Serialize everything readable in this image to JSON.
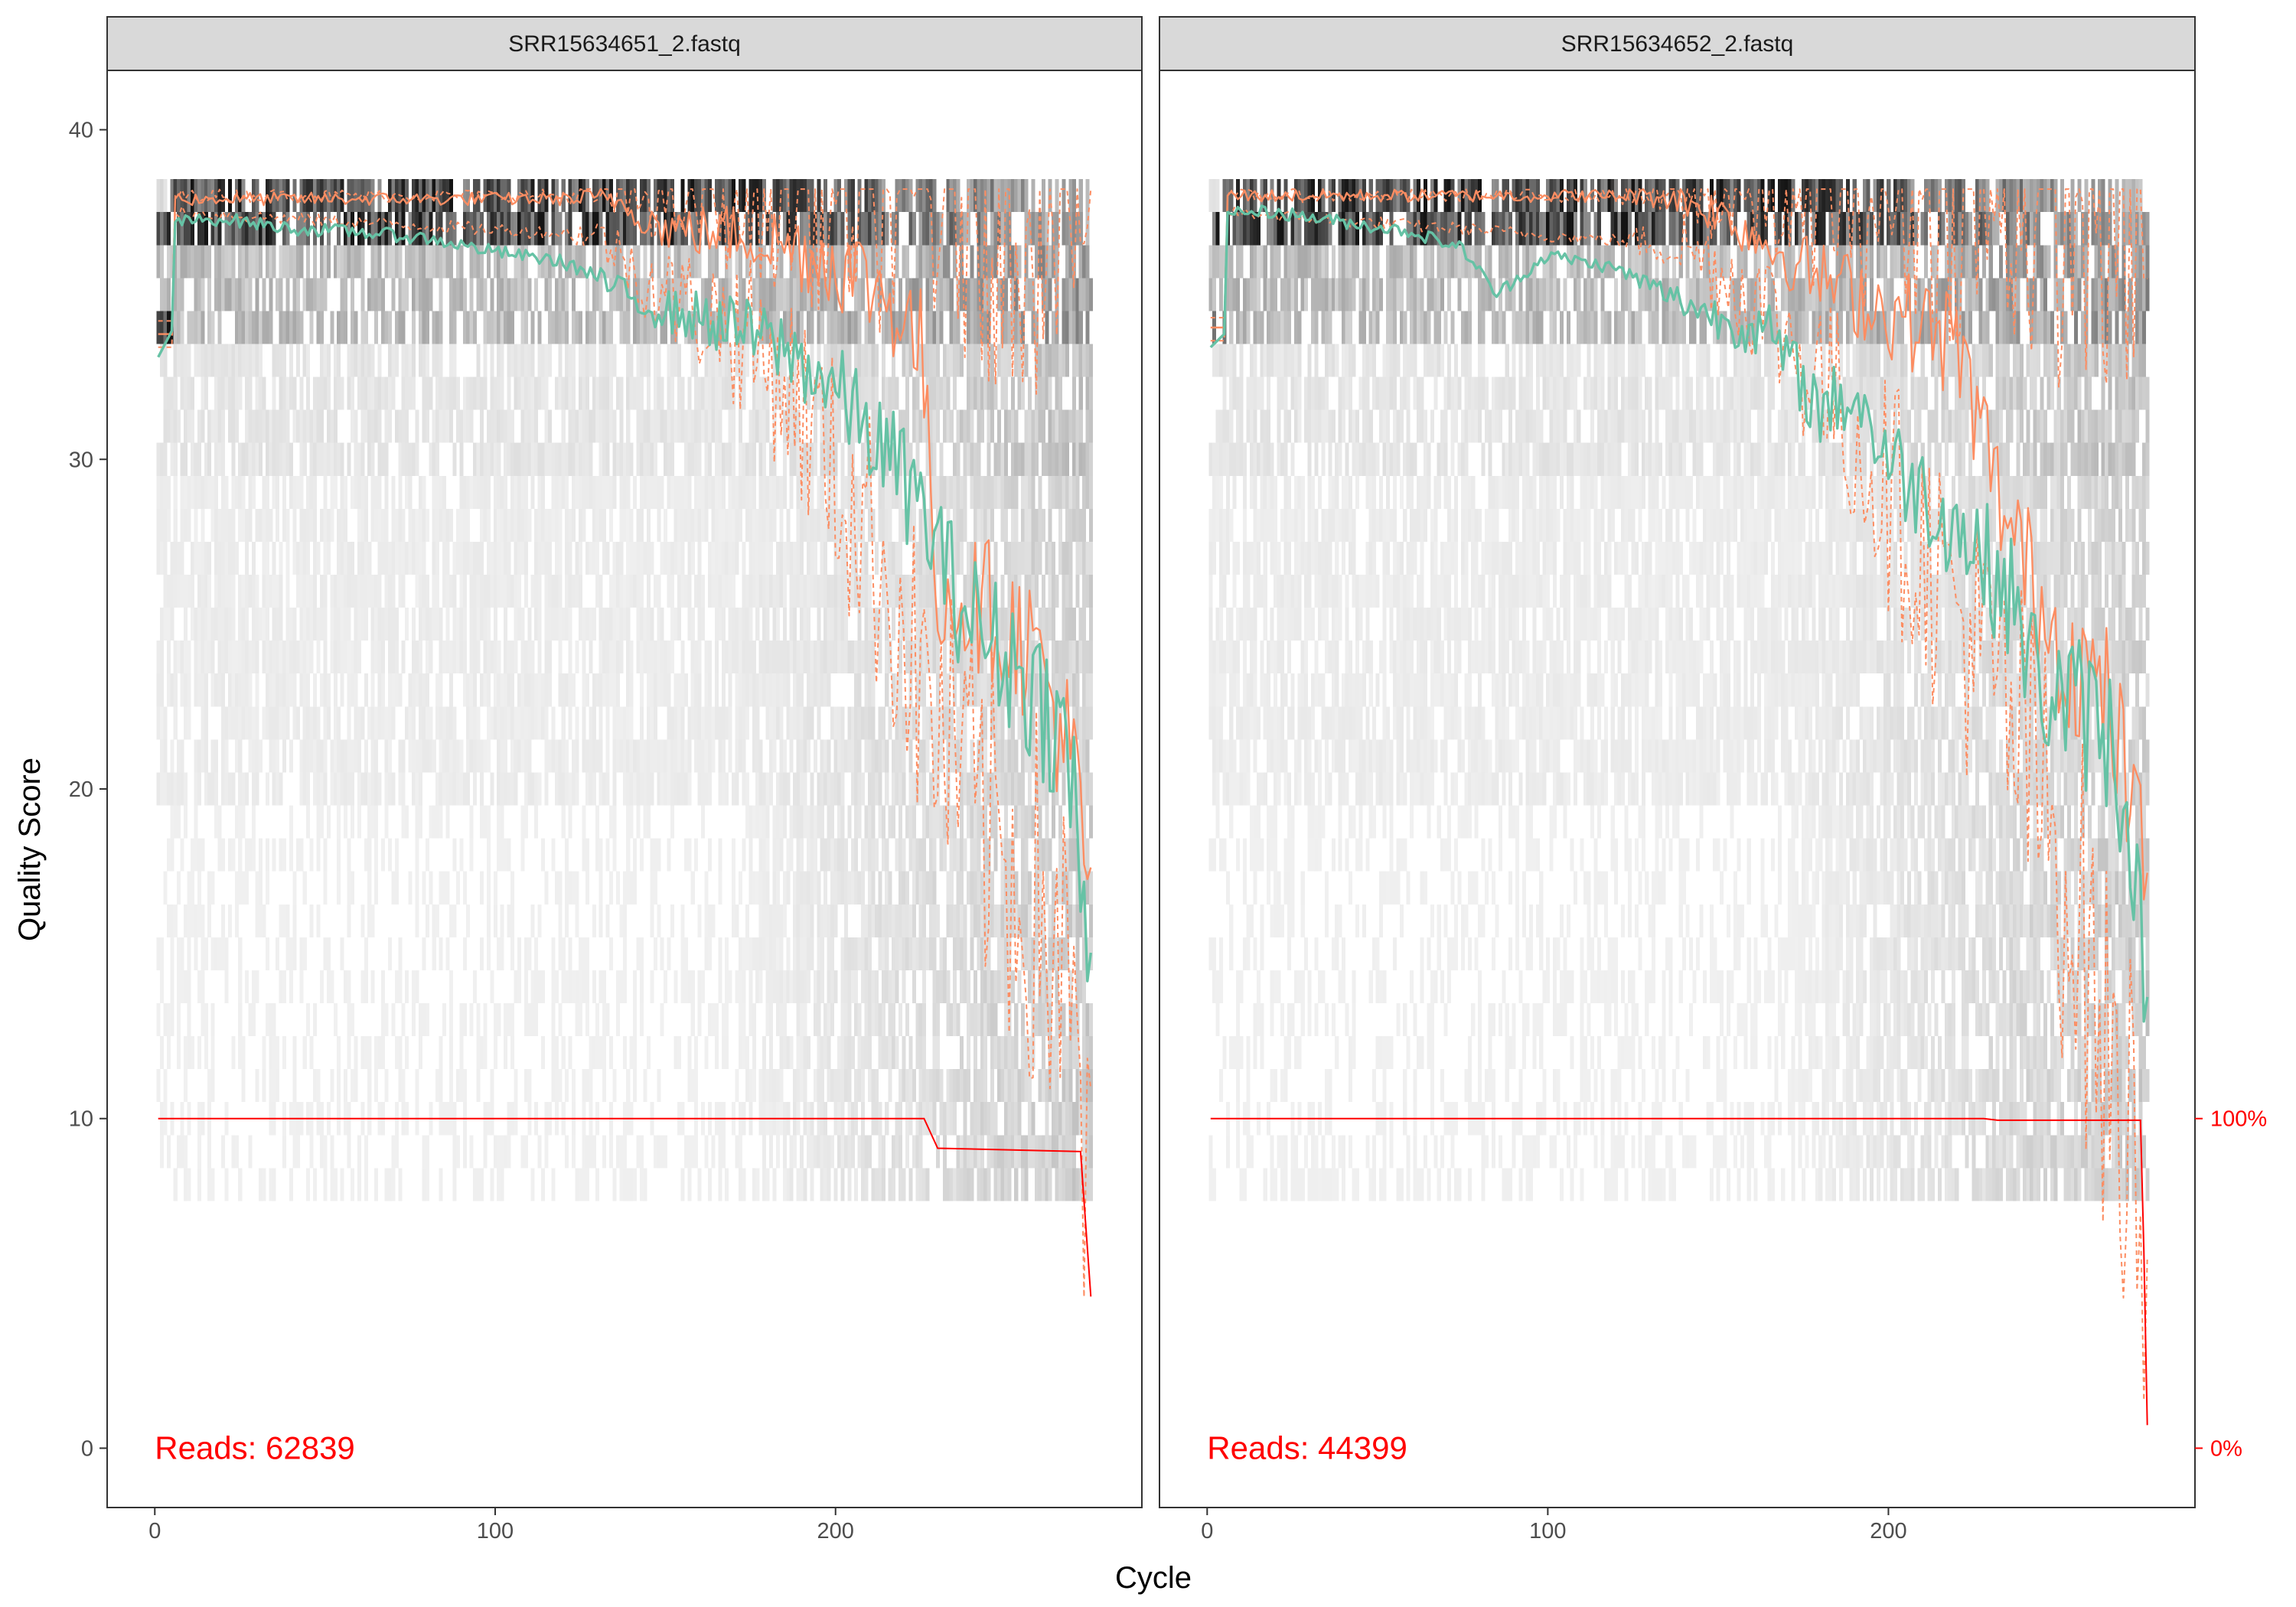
{
  "chart_data": {
    "type": "quality-profile-faceted",
    "xlabel": "Cycle",
    "ylabel": "Quality Score",
    "x_ticks": [
      0,
      100,
      200
    ],
    "y_ticks": [
      0,
      10,
      20,
      30,
      40
    ],
    "xlim": [
      -14,
      290
    ],
    "ylim": [
      -1.8,
      41.8
    ],
    "right_axis": {
      "labels": [
        "100%",
        "0%"
      ],
      "values_on_y": [
        10,
        0
      ]
    },
    "colors": {
      "mean": "#66c2a5",
      "median": "#fc8d62",
      "quartiles": "#fc8d62",
      "reads_fraction": "#ff0000",
      "heatmap_max": "#000000",
      "heatmap_min": "#f5f5f5",
      "strip_bg": "#d9d9d9"
    },
    "panels": [
      {
        "title": "SRR15634651_2.fastq",
        "reads_label": "Reads:  62839",
        "max_cycle": 275,
        "mean": [
          [
            1,
            33.1
          ],
          [
            5,
            33.9
          ],
          [
            6,
            37.2
          ],
          [
            20,
            37.3
          ],
          [
            40,
            37.0
          ],
          [
            60,
            36.9
          ],
          [
            80,
            36.7
          ],
          [
            100,
            36.3
          ],
          [
            120,
            36.0
          ],
          [
            130,
            35.5
          ],
          [
            140,
            34.9
          ],
          [
            150,
            34.5
          ],
          [
            160,
            34.3
          ],
          [
            170,
            34.0
          ],
          [
            180,
            33.6
          ],
          [
            190,
            33.0
          ],
          [
            200,
            32.1
          ],
          [
            210,
            30.8
          ],
          [
            220,
            29.4
          ],
          [
            228,
            27.8
          ],
          [
            235,
            26.0
          ],
          [
            245,
            24.5
          ],
          [
            255,
            23.5
          ],
          [
            265,
            22.0
          ],
          [
            270,
            20.0
          ],
          [
            275,
            13.2
          ]
        ],
        "median": [
          [
            1,
            33.8
          ],
          [
            5,
            33.8
          ],
          [
            6,
            37.9
          ],
          [
            135,
            37.9
          ],
          [
            150,
            37.0
          ],
          [
            175,
            36.8
          ],
          [
            200,
            36.0
          ],
          [
            215,
            35.0
          ],
          [
            225,
            33.5
          ],
          [
            230,
            26.0
          ],
          [
            245,
            25.5
          ],
          [
            260,
            24.0
          ],
          [
            270,
            20.5
          ],
          [
            275,
            16.0
          ]
        ],
        "q25": [
          [
            1,
            33.4
          ],
          [
            5,
            33.4
          ],
          [
            6,
            37.5
          ],
          [
            130,
            36.8
          ],
          [
            150,
            35.0
          ],
          [
            170,
            34.0
          ],
          [
            185,
            32.5
          ],
          [
            200,
            29.5
          ],
          [
            215,
            26.5
          ],
          [
            225,
            23.0
          ],
          [
            240,
            19.5
          ],
          [
            255,
            17.0
          ],
          [
            265,
            15.5
          ],
          [
            275,
            7.5
          ]
        ],
        "q75": [
          [
            1,
            34.2
          ],
          [
            5,
            34.2
          ],
          [
            6,
            38.0
          ],
          [
            275,
            38.0
          ]
        ],
        "reads_fraction": [
          [
            1,
            1.0
          ],
          [
            226,
            1.0
          ],
          [
            230,
            0.91
          ],
          [
            272,
            0.9
          ],
          [
            273,
            0.75
          ],
          [
            275,
            0.46
          ]
        ]
      },
      {
        "title": "SRR15634652_2.fastq",
        "reads_label": "Reads:  44399",
        "max_cycle": 276,
        "mean": [
          [
            1,
            33.4
          ],
          [
            5,
            33.8
          ],
          [
            6,
            37.5
          ],
          [
            20,
            37.5
          ],
          [
            40,
            37.2
          ],
          [
            60,
            36.9
          ],
          [
            75,
            36.4
          ],
          [
            85,
            35.0
          ],
          [
            100,
            36.2
          ],
          [
            120,
            35.8
          ],
          [
            135,
            35.0
          ],
          [
            150,
            34.3
          ],
          [
            165,
            33.8
          ],
          [
            180,
            31.5
          ],
          [
            190,
            32.0
          ],
          [
            200,
            30.0
          ],
          [
            220,
            28.0
          ],
          [
            235,
            26.0
          ],
          [
            245,
            23.0
          ],
          [
            255,
            22.5
          ],
          [
            265,
            21.5
          ],
          [
            272,
            18.5
          ],
          [
            276,
            12.1
          ]
        ],
        "median": [
          [
            1,
            34.0
          ],
          [
            5,
            34.0
          ],
          [
            6,
            38.0
          ],
          [
            135,
            38.0
          ],
          [
            150,
            37.5
          ],
          [
            165,
            36.5
          ],
          [
            180,
            35.5
          ],
          [
            200,
            34.5
          ],
          [
            220,
            33.5
          ],
          [
            235,
            28.0
          ],
          [
            250,
            24.5
          ],
          [
            265,
            22.5
          ],
          [
            276,
            17.0
          ]
        ],
        "q25": [
          [
            1,
            33.6
          ],
          [
            5,
            33.6
          ],
          [
            6,
            37.5
          ],
          [
            140,
            36.5
          ],
          [
            160,
            35.0
          ],
          [
            180,
            32.5
          ],
          [
            200,
            29.0
          ],
          [
            220,
            25.5
          ],
          [
            240,
            21.0
          ],
          [
            255,
            16.5
          ],
          [
            265,
            11.0
          ],
          [
            276,
            8.0
          ]
        ],
        "q75": [
          [
            1,
            34.3
          ],
          [
            5,
            34.3
          ],
          [
            6,
            38.0
          ],
          [
            276,
            38.0
          ]
        ],
        "reads_fraction": [
          [
            1,
            1.0
          ],
          [
            228,
            1.0
          ],
          [
            232,
            0.995
          ],
          [
            274,
            0.995
          ],
          [
            275,
            0.6
          ],
          [
            276,
            0.07
          ]
        ]
      }
    ]
  }
}
